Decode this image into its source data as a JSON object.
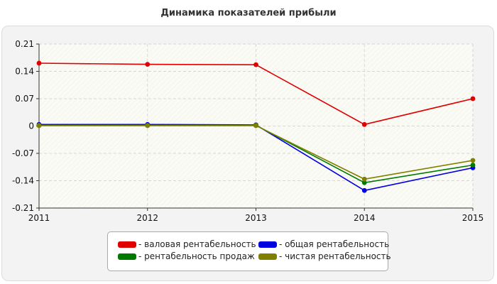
{
  "title": "Динамика показателей прибыли",
  "chart_data": {
    "type": "line",
    "x": [
      "2011",
      "2012",
      "2013",
      "2014",
      "2015"
    ],
    "ylim": [
      -0.21,
      0.21
    ],
    "y_ticks": [
      "0.21",
      "0.14",
      "0.07",
      "0",
      "-0.07",
      "-0.14",
      "-0.21"
    ],
    "grid": true,
    "legend_position": "bottom",
    "series": [
      {
        "name": "- валовая рентабельность",
        "color": "#e00000",
        "values": [
          0.161,
          0.158,
          0.157,
          0.004,
          0.07
        ]
      },
      {
        "name": "- общая рентабельность",
        "color": "#0000e0",
        "values": [
          0.004,
          0.004,
          0.003,
          -0.165,
          -0.107
        ]
      },
      {
        "name": "- рентабельность продаж",
        "color": "#007a00",
        "values": [
          0.002,
          0.002,
          0.002,
          -0.145,
          -0.1
        ]
      },
      {
        "name": "- чистая рентабельность",
        "color": "#808000",
        "values": [
          0.001,
          0.001,
          0.001,
          -0.136,
          -0.088
        ]
      }
    ]
  }
}
